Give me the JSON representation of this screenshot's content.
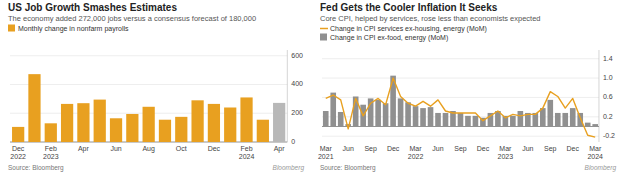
{
  "chart_data": [
    {
      "type": "bar",
      "title": "US Job Growth Smashes Estimates",
      "subtitle": "The economy added 272,000 jobs versus a consensus forecast of 180,000",
      "source": "Source: Bloomberg",
      "annotations": [
        "Bloomberg"
      ],
      "categories": [
        "Dec\n2022",
        null,
        "Feb\n2023",
        null,
        "Apr",
        null,
        "Jun",
        null,
        "Aug",
        null,
        "Oct",
        null,
        "Dec",
        null,
        "Feb\n2024",
        null,
        "Apr"
      ],
      "series": [
        {
          "name": "Monthly change in nonfarm payrolls",
          "type": "bar",
          "color": "#E8A020",
          "colors": [
            "#E8A020",
            "#E8A020",
            "#E8A020",
            "#E8A020",
            "#E8A020",
            "#E8A020",
            "#E8A020",
            "#E8A020",
            "#E8A020",
            "#E8A020",
            "#E8A020",
            "#E8A020",
            "#E8A020",
            "#E8A020",
            "#E8A020",
            "#E8A020",
            "#B8B8B8"
          ],
          "values": [
            105,
            472,
            130,
            265,
            270,
            295,
            165,
            195,
            245,
            155,
            175,
            290,
            265,
            240,
            310,
            155,
            272
          ]
        }
      ],
      "ylim": [
        0,
        640
      ],
      "yticks": [
        0,
        200,
        400,
        600
      ],
      "grid": true,
      "legend": "top"
    },
    {
      "type": "bar",
      "title": "Fed Gets the Cooler Inflation It Seeks",
      "subtitle": "Core CPI, helped by services, rose less than economists expected",
      "source": "Source: Bloomberg",
      "annotations": [
        "Bloomberg"
      ],
      "categories": [
        "Mar\n2021",
        null,
        null,
        "Jun",
        null,
        null,
        "Sep",
        null,
        null,
        "Dec",
        null,
        null,
        "Mar\n2022",
        null,
        null,
        "Jun",
        null,
        null,
        "Sep",
        null,
        null,
        "Dec",
        null,
        null,
        "Mar\n2023",
        null,
        null,
        "Jun",
        null,
        null,
        "Sep",
        null,
        null,
        "Dec",
        null,
        null,
        "Mar\n2024"
      ],
      "series": [
        {
          "name": "Change in CPI services ex-housing, energy (MoM)",
          "type": "line",
          "color": "#E8A020",
          "values": [
            0.58,
            0.65,
            0.55,
            -0.05,
            0.58,
            0.22,
            0.48,
            0.58,
            0.45,
            1.0,
            0.62,
            0.48,
            0.42,
            0.52,
            0.42,
            0.55,
            0.32,
            0.28,
            0.28,
            0.28,
            0.28,
            0.12,
            0.22,
            0.32,
            0.18,
            0.25,
            0.22,
            0.25,
            0.25,
            0.38,
            0.72,
            0.62,
            0.38,
            0.58,
            0.18,
            -0.18,
            -0.22
          ]
        },
        {
          "name": "Change in CPI ex-food, energy (MoM)",
          "type": "bar",
          "color": "#909090",
          "values": [
            0.32,
            0.7,
            0.3,
            0.05,
            0.62,
            0.45,
            0.58,
            0.55,
            0.48,
            1.05,
            0.58,
            0.5,
            0.42,
            0.38,
            0.4,
            0.28,
            0.28,
            0.32,
            0.28,
            0.22,
            0.22,
            0.18,
            0.28,
            0.32,
            0.22,
            0.22,
            0.32,
            0.28,
            0.28,
            0.38,
            0.55,
            0.28,
            0.28,
            0.38,
            0.28,
            0.08,
            0.05
          ]
        }
      ],
      "ylim": [
        -0.32,
        1.58
      ],
      "yticks": [
        -0.2,
        0.2,
        0.6,
        {
          "value": 1.0,
          "label": "1.0"
        },
        1.4
      ],
      "grid": true,
      "legend": "top"
    }
  ]
}
